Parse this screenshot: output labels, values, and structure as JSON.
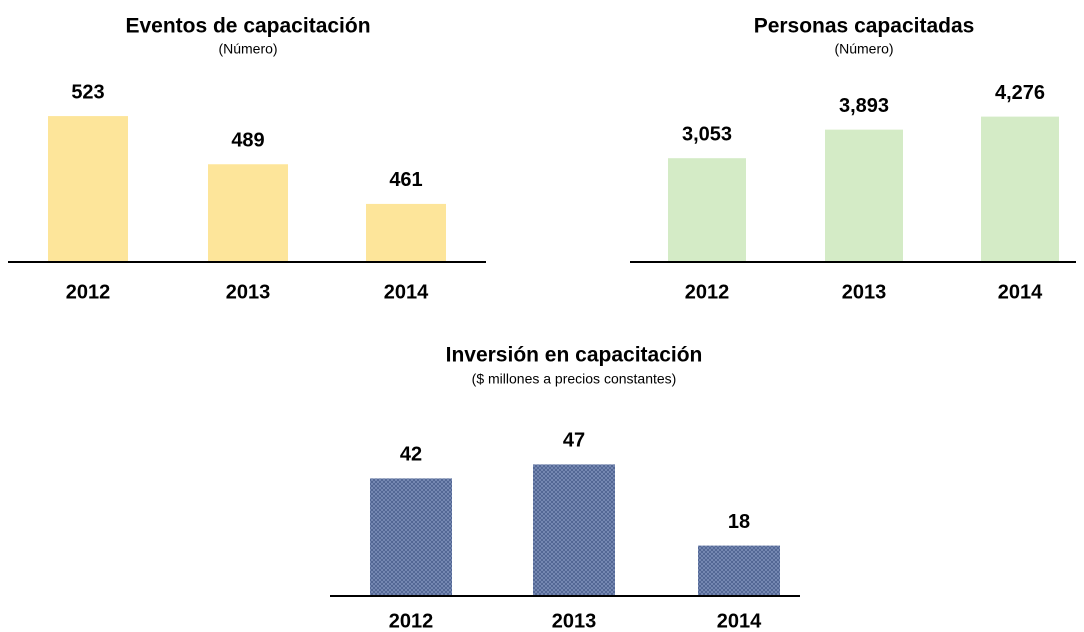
{
  "chart_data": [
    {
      "type": "bar",
      "title": "Eventos de capacitación",
      "subtitle": "(Número)",
      "categories": [
        "2012",
        "2013",
        "2014"
      ],
      "values": [
        523,
        489,
        461
      ],
      "color": "#fde59a",
      "ylim": [
        420,
        540
      ]
    },
    {
      "type": "bar",
      "title": "Personas capacitadas",
      "subtitle": "(Número)",
      "categories": [
        "2012",
        "2013",
        "2014"
      ],
      "values": [
        3053,
        3893,
        4276
      ],
      "value_labels": [
        "3,053",
        "3,893",
        "4,276"
      ],
      "color": "#d4ebc6",
      "ylim": [
        0,
        5000
      ]
    },
    {
      "type": "bar",
      "title": "Inversión en capacitación",
      "subtitle": "($ millones a precios constantes)",
      "categories": [
        "2012",
        "2013",
        "2014"
      ],
      "values": [
        42,
        47,
        18
      ],
      "color": "#4f6391",
      "ylim": [
        0,
        60
      ]
    }
  ]
}
